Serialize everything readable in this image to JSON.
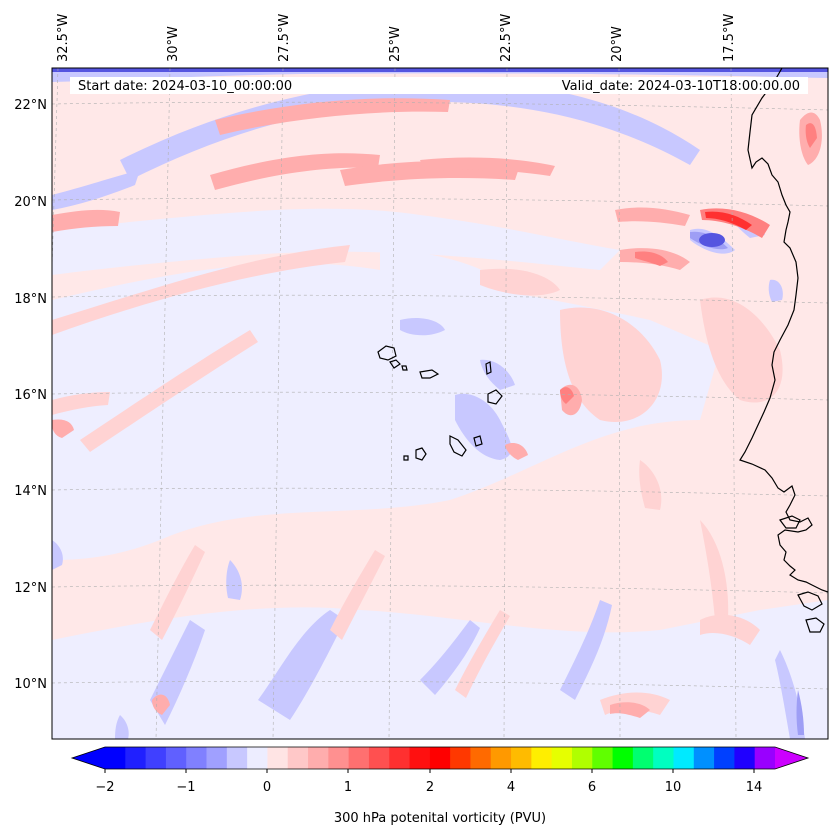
{
  "header": {
    "start_date": "Start date: 2024-03-10_00:00:00",
    "valid_date": "Valid_date: 2024-03-10T18:00:00.00"
  },
  "axes": {
    "lon_labels": [
      "32.5°W",
      "30°W",
      "27.5°W",
      "25°W",
      "22.5°W",
      "20°W",
      "17.5°W"
    ],
    "lat_labels": [
      "22°N",
      "20°N",
      "18°N",
      "16°N",
      "14°N",
      "12°N",
      "10°N"
    ],
    "grid": true
  },
  "colorbar": {
    "label": "300 hPa potenital vorticity (PVU)",
    "tick_labels": [
      "−2",
      "−1",
      "0",
      "1",
      "2",
      "4",
      "6",
      "10",
      "14"
    ],
    "colors": [
      "#0000ff",
      "#2020ff",
      "#4040ff",
      "#6060ff",
      "#8080ff",
      "#a0a0ff",
      "#c8c8ff",
      "#ededff",
      "#ffe4e4",
      "#ffc8c8",
      "#ffadad",
      "#ff9090",
      "#ff7070",
      "#ff5050",
      "#ff3030",
      "#ff1010",
      "#ff0000",
      "#ff3800",
      "#ff6a00",
      "#ff9900",
      "#ffbb00",
      "#ffee00",
      "#e6ff00",
      "#b0ff00",
      "#60ff00",
      "#00ff00",
      "#00ff70",
      "#00ffc0",
      "#00eaff",
      "#0090ff",
      "#0040ff",
      "#2000ff",
      "#9900ff"
    ],
    "under_color": "#0000ff",
    "over_color": "#cc00ff"
  },
  "map": {
    "region": "Cabo Verde / West African coast",
    "projection": "conic",
    "coastline_color": "#000000",
    "field_colors": {
      "background": "#ffe8e8",
      "light_blue": "#eeeeff",
      "blue": "#c8c8ff",
      "mid_blue": "#9e9ef5",
      "strong_blue": "#5555e0",
      "light_red": "#ffd3d3",
      "red": "#ffadad",
      "mid_red": "#ff8080",
      "strong_red": "#ff3030"
    }
  }
}
